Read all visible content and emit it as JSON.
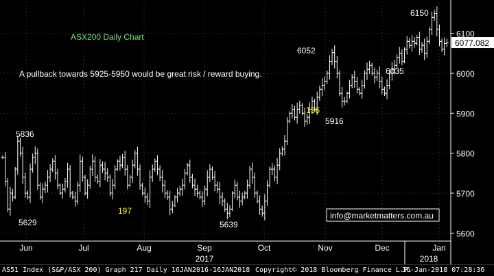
{
  "footer": {
    "series": "AS51 Index (S&P/ASX 200) Graph 217  Daily 16JAN2016-16JAN2018",
    "copyright": "Copyright© 2018 Bloomberg Finance L.P.",
    "timestamp": "16-Jan-2018 07:28:36"
  },
  "chart_data": {
    "type": "ohlc",
    "title": "ASX200 Daily Chart",
    "subtitle": "A pullback towards 5925-5950 would be great risk / reward buying.",
    "watermark": "info@marketmatters.com.au",
    "last_price": "6077.082",
    "ylim": [
      5580,
      6180
    ],
    "y_ticks": [
      5600,
      5700,
      5800,
      5900,
      6000,
      6100
    ],
    "x_tick_labels": [
      "Jun",
      "Jul",
      "Aug",
      "Sep",
      "Oct",
      "Nov",
      "Dec",
      "Jan"
    ],
    "year_labels": [
      "2017",
      "2018"
    ],
    "annotations": [
      {
        "text": "5836",
        "value": 5836
      },
      {
        "text": "5629",
        "value": 5629
      },
      {
        "text": "197",
        "color": "yellow"
      },
      {
        "text": "5639",
        "value": 5639
      },
      {
        "text": "6052",
        "value": 6052
      },
      {
        "text": "136",
        "color": "yellow"
      },
      {
        "text": "5916",
        "value": 5916
      },
      {
        "text": "6150",
        "value": 6150
      },
      {
        "text": "6035",
        "value": 6035
      }
    ],
    "colors": {
      "background": "#000000",
      "bars": "#ffffff",
      "grid": "#1a2a4a",
      "title": "#7fe27f",
      "highlight": "#ffff00"
    },
    "closes": [
      5790,
      5730,
      5660,
      5700,
      5690,
      5760,
      5830,
      5800,
      5740,
      5700,
      5690,
      5760,
      5790,
      5800,
      5720,
      5690,
      5710,
      5720,
      5740,
      5760,
      5780,
      5750,
      5720,
      5700,
      5710,
      5730,
      5760,
      5700,
      5690,
      5680,
      5720,
      5780,
      5740,
      5700,
      5720,
      5760,
      5780,
      5740,
      5730,
      5770,
      5760,
      5750,
      5740,
      5700,
      5720,
      5760,
      5780,
      5770,
      5790,
      5760,
      5720,
      5740,
      5770,
      5800,
      5760,
      5720,
      5700,
      5690,
      5680,
      5740,
      5760,
      5780,
      5760,
      5740,
      5720,
      5700,
      5690,
      5660,
      5670,
      5690,
      5700,
      5710,
      5720,
      5750,
      5770,
      5740,
      5720,
      5710,
      5700,
      5690,
      5680,
      5710,
      5740,
      5760,
      5740,
      5720,
      5710,
      5690,
      5680,
      5660,
      5650,
      5660,
      5700,
      5720,
      5690,
      5680,
      5690,
      5700,
      5720,
      5760,
      5740,
      5700,
      5680,
      5660,
      5650,
      5680,
      5720,
      5760,
      5760,
      5740,
      5770,
      5800,
      5810,
      5830,
      5880,
      5900,
      5910,
      5890,
      5910,
      5920,
      5900,
      5880,
      5890,
      5910,
      5930,
      5910,
      5940,
      5960,
      5970,
      5980,
      6000,
      6030,
      6052,
      6030,
      6000,
      5950,
      5930,
      5930,
      5950,
      5970,
      5990,
      5980,
      5960,
      5950,
      5970,
      6000,
      6010,
      6020,
      6000,
      5990,
      6000,
      5980,
      5960,
      5950,
      5970,
      6000,
      6010,
      6020,
      6040,
      6050,
      6030,
      6060,
      6080,
      6070,
      6080,
      6075,
      6090,
      6060,
      6070,
      6050,
      6080,
      6110,
      6140,
      6150,
      6110,
      6080,
      6060,
      6075,
      6077
    ]
  }
}
